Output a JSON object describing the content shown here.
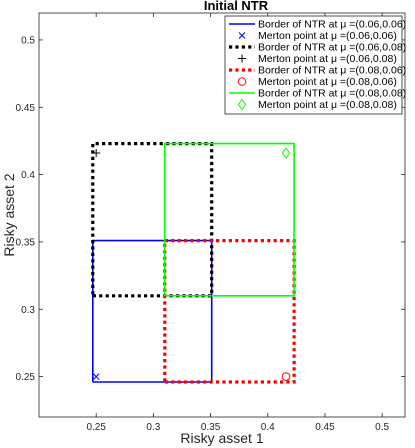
{
  "chart_data": {
    "type": "line",
    "title": "Initial NTR",
    "xlabel": "Risky asset 1",
    "ylabel": "Risky asset 2",
    "xlim": [
      0.2,
      0.52
    ],
    "ylim": [
      0.22,
      0.52
    ],
    "xticks": [
      0.25,
      0.3,
      0.35,
      0.4,
      0.45,
      0.5
    ],
    "yticks": [
      0.25,
      0.3,
      0.35,
      0.4,
      0.45,
      0.5
    ],
    "xtick_labels": [
      "0.25",
      "0.3",
      "0.35",
      "0.4",
      "0.45",
      "0.5"
    ],
    "ytick_labels": [
      "0.25",
      "0.3",
      "0.35",
      "0.4",
      "0.45",
      "0.5"
    ],
    "grid": false,
    "legend_position": "top-right",
    "series": [
      {
        "name": "Border of NTR at μ =(0.06,0.06)",
        "color": "#0000ff",
        "style": "solid",
        "x": [
          0.247,
          0.351,
          0.351,
          0.247,
          0.247
        ],
        "y": [
          0.246,
          0.246,
          0.351,
          0.351,
          0.246
        ],
        "merton_label": "Merton point at μ =(0.06,0.06)",
        "merton_point": [
          0.25,
          0.25
        ],
        "marker": "x"
      },
      {
        "name": "Border of NTR at μ =(0.06,0.08)",
        "color": "#000000",
        "style": "dotted",
        "x": [
          0.247,
          0.351,
          0.351,
          0.247,
          0.247
        ],
        "y": [
          0.31,
          0.31,
          0.423,
          0.423,
          0.31
        ],
        "merton_label": "Merton point at μ =(0.06,0.08)",
        "merton_point": [
          0.25,
          0.416
        ],
        "marker": "plus"
      },
      {
        "name": "Border of NTR at μ =(0.08,0.06)",
        "color": "#ff0000",
        "style": "dotted",
        "x": [
          0.31,
          0.423,
          0.423,
          0.31,
          0.31
        ],
        "y": [
          0.246,
          0.246,
          0.351,
          0.351,
          0.246
        ],
        "merton_label": "Merton point at μ =(0.08,0.06)",
        "merton_point": [
          0.416,
          0.25
        ],
        "marker": "circle"
      },
      {
        "name": "Border of NTR at μ =(0.08,0.08)",
        "color": "#00ff00",
        "style": "solid",
        "x": [
          0.31,
          0.423,
          0.423,
          0.31,
          0.31
        ],
        "y": [
          0.31,
          0.31,
          0.423,
          0.423,
          0.31
        ],
        "merton_label": "Merton point at μ =(0.08,0.08)",
        "merton_point": [
          0.416,
          0.416
        ],
        "marker": "diamond"
      }
    ]
  }
}
